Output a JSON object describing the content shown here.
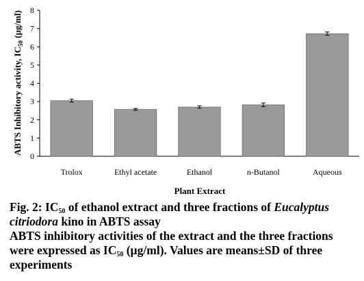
{
  "chart_data": {
    "type": "bar",
    "xlabel": "Plant Extract",
    "ylabel_parts": [
      "ABTS Inhibitory activity, IC",
      "50",
      " (µg/ml)"
    ],
    "ylim": [
      0,
      8
    ],
    "yticks": [
      0,
      1,
      2,
      3,
      4,
      5,
      6,
      7,
      8
    ],
    "categories": [
      "Trolox",
      "Ethyl acetate",
      "Ethanol",
      "n-Butanol",
      "Aqueous"
    ],
    "values": [
      3.05,
      2.57,
      2.7,
      2.82,
      6.72
    ],
    "errors": [
      0.08,
      0.05,
      0.07,
      0.1,
      0.09
    ],
    "bar_color": "#9a9a9a",
    "grid": false
  },
  "caption": {
    "fig_label": "Fig. 2: IC",
    "fig_sub": "50",
    "fig_mid": " of ethanol extract and three fractions of ",
    "fig_species": "Eucalyptus citriodora",
    "fig_end": " kino in ABTS assay",
    "note_a": "ABTS inhibitory activities of the extract and the three fractions were expressed as IC",
    "note_sub": "50",
    "note_b": " (µg/ml). Values are means±SD of three experiments"
  }
}
